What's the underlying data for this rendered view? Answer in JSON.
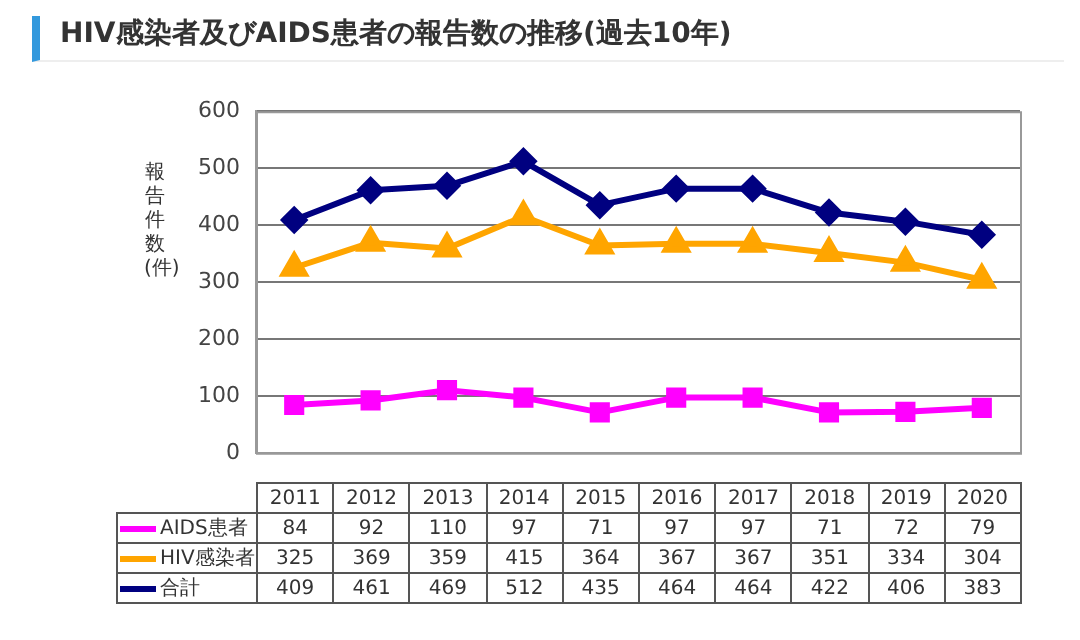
{
  "chart_data": {
    "type": "line",
    "title": "HIV感染者及びAIDS患者の報告数の推移(過去10年)",
    "ylabel": "報告件数(件)",
    "categories": [
      "2011",
      "2012",
      "2013",
      "2014",
      "2015",
      "2016",
      "2017",
      "2018",
      "2019",
      "2020"
    ],
    "series": [
      {
        "name": "AIDS患者",
        "color": "#ff00ff",
        "marker": "square",
        "values": [
          84,
          92,
          110,
          97,
          71,
          97,
          97,
          71,
          72,
          79
        ]
      },
      {
        "name": "HIV感染者",
        "color": "#ffa500",
        "marker": "triangle",
        "values": [
          325,
          369,
          359,
          415,
          364,
          367,
          367,
          351,
          334,
          304
        ]
      },
      {
        "name": "合計",
        "color": "#000080",
        "marker": "diamond",
        "values": [
          409,
          461,
          469,
          512,
          435,
          464,
          464,
          422,
          406,
          383
        ]
      }
    ],
    "ylim": [
      0,
      600
    ],
    "yticks": [
      0,
      100,
      200,
      300,
      400,
      500,
      600
    ],
    "grid": "y",
    "legend": "bottom",
    "data_labels": true
  }
}
